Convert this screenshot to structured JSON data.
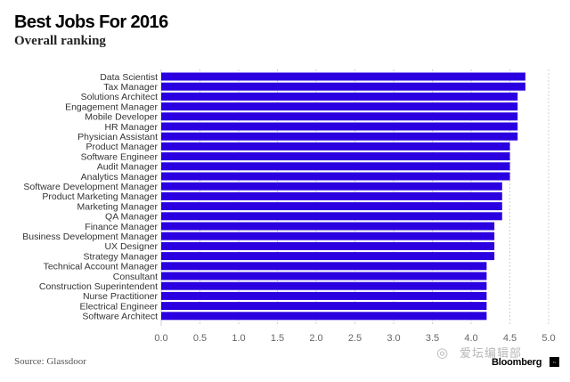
{
  "title": "Best Jobs For 2016",
  "subtitle": "Overall ranking",
  "source": "Source: Glassdoor",
  "watermark": "爱坛编辑部",
  "brand": "Bloomberg",
  "brand_mark": "ₙ",
  "colors": {
    "bar": "#2B00E0",
    "grid": "#d0d0d0",
    "axis": "#666666"
  },
  "chart_data": {
    "type": "bar",
    "orientation": "horizontal",
    "title": "Best Jobs For 2016",
    "subtitle": "Overall ranking",
    "xlabel": "",
    "ylabel": "",
    "xlim": [
      0,
      5
    ],
    "ticks": [
      "0.0",
      "0.5",
      "1.0",
      "1.5",
      "2.0",
      "2.5",
      "3.0",
      "3.5",
      "4.0",
      "4.5",
      "5.0"
    ],
    "grid": true,
    "legend": "none",
    "categories": [
      "Data Scientist",
      "Tax Manager",
      "Solutions Architect",
      "Engagement Manager",
      "Mobile Developer",
      "HR Manager",
      "Physician Assistant",
      "Product Manager",
      "Software Engineer",
      "Audit Manager",
      "Analytics Manager",
      "Software Development Manager",
      "Product Marketing Manager",
      "Marketing Manager",
      "QA Manager",
      "Finance Manager",
      "Business Development Manager",
      "UX Designer",
      "Strategy Manager",
      "Technical Account Manager",
      "Consultant",
      "Construction Superintendent",
      "Nurse Practitioner",
      "Electrical Engineer",
      "Software Architect"
    ],
    "values": [
      4.7,
      4.7,
      4.6,
      4.6,
      4.6,
      4.6,
      4.6,
      4.5,
      4.5,
      4.5,
      4.5,
      4.4,
      4.4,
      4.4,
      4.4,
      4.3,
      4.3,
      4.3,
      4.3,
      4.2,
      4.2,
      4.2,
      4.2,
      4.2,
      4.2
    ]
  }
}
